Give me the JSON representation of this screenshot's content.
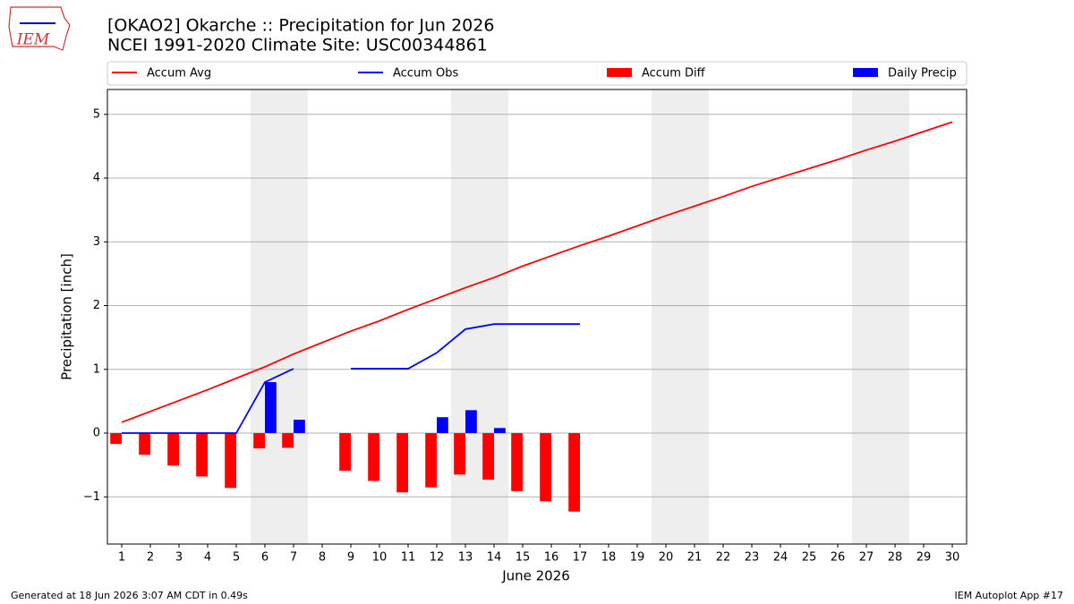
{
  "chart_data": {
    "type": "line_bar",
    "title": "[OKAO2] Okarche :: Precipitation for Jun 2026",
    "subtitle": "NCEI 1991-2020 Climate Site: USC00344861",
    "x_label": "June 2026",
    "y_label": "Precipitation [inch]",
    "logo": "IEM",
    "footer_left": "Generated at 18 Jun 2026 3:07 AM CDT in 0.49s",
    "footer_right": "IEM Autoplot App #17",
    "x": [
      1,
      2,
      3,
      4,
      5,
      6,
      7,
      8,
      9,
      10,
      11,
      12,
      13,
      14,
      15,
      16,
      17,
      18,
      19,
      20,
      21,
      22,
      23,
      24,
      25,
      26,
      27,
      28,
      29,
      30
    ],
    "xlim": [
      0.5,
      30.5
    ],
    "xticks": [
      1,
      2,
      3,
      4,
      5,
      6,
      7,
      8,
      9,
      10,
      11,
      12,
      13,
      14,
      15,
      16,
      17,
      18,
      19,
      20,
      21,
      22,
      23,
      24,
      25,
      26,
      27,
      28,
      29,
      30
    ],
    "ylim": [
      -1.74,
      5.39
    ],
    "yticks": [
      {
        "value": -1,
        "label": "−1"
      },
      0,
      1,
      2,
      3,
      4,
      5
    ],
    "grid": true,
    "shaded_spans": [
      [
        5.5,
        7.5
      ],
      [
        12.5,
        14.5
      ],
      [
        19.5,
        21.5
      ],
      [
        26.5,
        28.5
      ]
    ],
    "series": [
      {
        "name": "Accum Avg",
        "kind": "line",
        "color": "#ff0000",
        "values": [
          0.17,
          0.34,
          0.51,
          0.68,
          0.86,
          1.04,
          1.24,
          1.42,
          1.6,
          1.76,
          1.94,
          2.11,
          2.28,
          2.44,
          2.62,
          2.78,
          2.94,
          3.09,
          3.25,
          3.41,
          3.56,
          3.71,
          3.87,
          4.01,
          4.15,
          4.29,
          4.44,
          4.58,
          4.73,
          4.88
        ]
      },
      {
        "name": "Accum Obs",
        "kind": "line",
        "color": "#0000ff",
        "values": [
          0,
          0,
          0,
          0,
          0,
          0.8,
          1.01,
          null,
          1.01,
          1.01,
          1.01,
          1.26,
          1.63,
          1.71,
          1.71,
          1.71,
          1.71,
          null,
          null,
          null,
          null,
          null,
          null,
          null,
          null,
          null,
          null,
          null,
          null,
          null
        ]
      },
      {
        "name": "Accum Diff",
        "kind": "bar",
        "offset": -0.2,
        "color": "#ff0000",
        "values": [
          -0.17,
          -0.34,
          -0.51,
          -0.68,
          -0.86,
          -0.24,
          -0.23,
          null,
          -0.59,
          -0.75,
          -0.93,
          -0.85,
          -0.65,
          -0.73,
          -0.91,
          -1.07,
          -1.23,
          null,
          null,
          null,
          null,
          null,
          null,
          null,
          null,
          null,
          null,
          null,
          null,
          null
        ]
      },
      {
        "name": "Daily Precip",
        "kind": "bar",
        "offset": 0.2,
        "color": "#0000ff",
        "values": [
          0,
          0,
          0,
          0,
          0,
          0.8,
          0.21,
          null,
          0,
          0,
          0,
          0.25,
          0.36,
          0.08,
          0,
          0,
          0,
          null,
          null,
          null,
          null,
          null,
          null,
          null,
          null,
          null,
          null,
          null,
          null,
          null
        ]
      }
    ]
  }
}
